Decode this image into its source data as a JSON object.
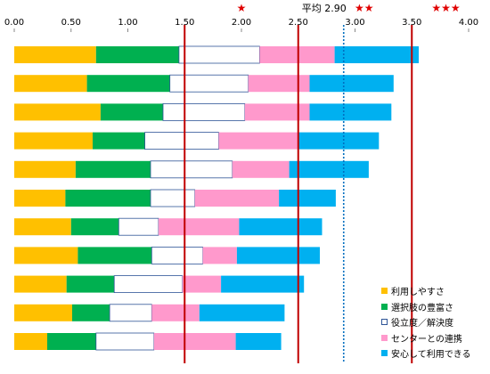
{
  "chart_data": {
    "type": "bar",
    "orientation": "horizontal",
    "stacked": true,
    "xlim": [
      0,
      4.0
    ],
    "x_ticks": [
      "0.00",
      "0.50",
      "1.00",
      "1.50",
      "2.00",
      "2.50",
      "3.00",
      "3.50",
      "4.00"
    ],
    "grid": false,
    "legend_position": "bottom-right",
    "series": [
      {
        "name": "利用しやすさ",
        "color": "#FFC000",
        "values": [
          0.72,
          0.64,
          0.76,
          0.69,
          0.54,
          0.45,
          0.5,
          0.56,
          0.46,
          0.51,
          0.29
        ]
      },
      {
        "name": "選択肢の豊富さ",
        "color": "#00B050",
        "values": [
          0.73,
          0.73,
          0.55,
          0.46,
          0.66,
          0.75,
          0.42,
          0.65,
          0.42,
          0.33,
          0.43
        ]
      },
      {
        "name": "役立度／解決度",
        "color": "#FFFFFF",
        "values": [
          0.71,
          0.69,
          0.72,
          0.65,
          0.72,
          0.39,
          0.35,
          0.45,
          0.6,
          0.37,
          0.51
        ]
      },
      {
        "name": "センターとの連携",
        "color": "#FF99CC",
        "values": [
          0.66,
          0.54,
          0.57,
          0.7,
          0.5,
          0.74,
          0.71,
          0.3,
          0.34,
          0.42,
          0.72
        ]
      },
      {
        "name": "安心して利用できる",
        "color": "#00B0F0",
        "values": [
          0.74,
          0.74,
          0.72,
          0.71,
          0.7,
          0.5,
          0.73,
          0.73,
          0.73,
          0.75,
          0.4
        ]
      }
    ],
    "reference_lines": [
      {
        "value": 1.5,
        "style": "solid",
        "color": "#C00000"
      },
      {
        "value": 2.5,
        "style": "solid",
        "color": "#C00000"
      },
      {
        "value": 3.5,
        "style": "solid",
        "color": "#C00000"
      },
      {
        "value": 2.9,
        "style": "dotted",
        "color": "#0070C0",
        "label": "平均 2.90"
      }
    ],
    "star_marks": [
      {
        "value": 2.0,
        "text": "★"
      },
      {
        "value": 3.08,
        "text": "★★"
      },
      {
        "value": 3.8,
        "text": "★★★"
      }
    ]
  }
}
